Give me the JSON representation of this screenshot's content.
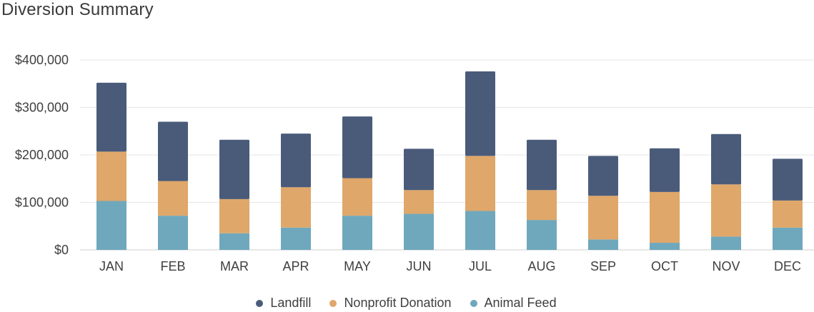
{
  "chart_data": {
    "type": "bar",
    "stacked": true,
    "title": "Diversion Summary",
    "categories": [
      "JAN",
      "FEB",
      "MAR",
      "APR",
      "MAY",
      "JUN",
      "JUL",
      "AUG",
      "SEP",
      "OCT",
      "NOV",
      "DEC"
    ],
    "series": [
      {
        "name": "Animal Feed",
        "color": "#6fa8bc",
        "values": [
          103000,
          72000,
          35000,
          47000,
          72000,
          76000,
          82000,
          63000,
          22000,
          15000,
          28000,
          47000
        ]
      },
      {
        "name": "Nonprofit Donation",
        "color": "#dfa76a",
        "values": [
          104000,
          73000,
          72000,
          85000,
          79000,
          50000,
          116000,
          63000,
          92000,
          107000,
          110000,
          57000
        ]
      },
      {
        "name": "Landfill",
        "color": "#4a5b7a",
        "values": [
          145000,
          125000,
          125000,
          113000,
          130000,
          87000,
          178000,
          106000,
          84000,
          92000,
          106000,
          88000
        ]
      }
    ],
    "yticks": [
      "$0",
      "$100,000",
      "$200,000",
      "$300,000",
      "$400,000"
    ],
    "ytick_values": [
      0,
      100000,
      200000,
      300000,
      400000
    ],
    "ylim": [
      0,
      400000
    ],
    "xlabel": "",
    "ylabel": "",
    "grid": true,
    "legend_position": "bottom-center",
    "legend_order": [
      "Landfill",
      "Nonprofit Donation",
      "Animal Feed"
    ]
  }
}
